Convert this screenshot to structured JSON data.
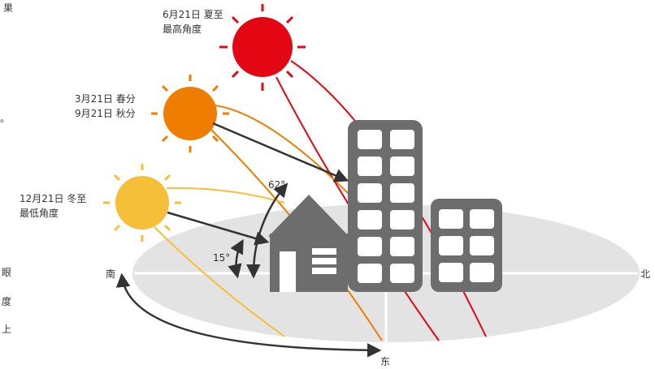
{
  "labels": {
    "summer_date": "6月21日 夏至",
    "summer_note": "最高角度",
    "equinox_spring": "3月21日 春分",
    "equinox_autumn": "9月21日 秋分",
    "winter_date": "12月21日 冬至",
    "winter_note": "最低角度",
    "high_angle": "62°",
    "low_angle": "15°",
    "south": "南",
    "north": "北",
    "east": "东"
  },
  "edge_text": [
    "果",
    "。",
    "眼",
    "度",
    "上"
  ]
}
